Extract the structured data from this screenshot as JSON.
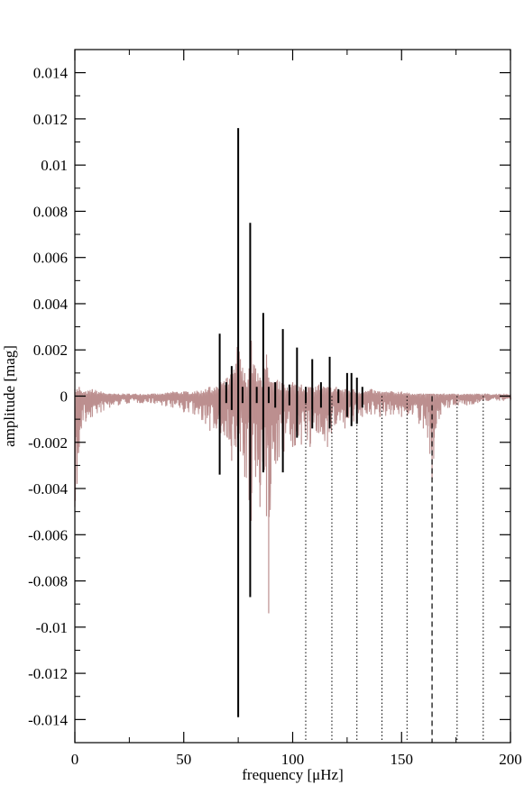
{
  "chart_data": {
    "type": "line",
    "xlabel": "frequency [μHz]",
    "ylabel": "amplitude [mag]",
    "xlim": [
      0,
      200
    ],
    "ylim": [
      -0.015,
      0.015
    ],
    "x_ticks": [
      0,
      50,
      100,
      150,
      200
    ],
    "y_ticks": [
      -0.014,
      -0.012,
      -0.01,
      -0.008,
      -0.006,
      -0.004,
      -0.002,
      0,
      0.002,
      0.004,
      0.006,
      0.008,
      0.01,
      0.012,
      0.014
    ],
    "x_tick_labels": [
      "0",
      "50",
      "100",
      "150",
      "200"
    ],
    "y_tick_labels": [
      "-0.014",
      "-0.012",
      "-0.01",
      "-0.008",
      "-0.006",
      "-0.004",
      "-0.002",
      "0",
      "0.002",
      "0.004",
      "0.006",
      "0.008",
      "0.01",
      "0.012",
      "0.014"
    ],
    "grid": false,
    "colors": {
      "spectrum": "#bc8f8f",
      "stick": "#000000",
      "frame": "#000000"
    },
    "series": [
      {
        "kind": "noisy-spectrum",
        "color": "#bc8f8f",
        "x": [
          0,
          1,
          2,
          3,
          5,
          8,
          12,
          16,
          20,
          25,
          30,
          35,
          40,
          45,
          50,
          55,
          60,
          62,
          65,
          67,
          70,
          72,
          74,
          75,
          76,
          78,
          80,
          81,
          83,
          85,
          87,
          88,
          89,
          90,
          93,
          96,
          100,
          104,
          108,
          112,
          116,
          120,
          124,
          128,
          132,
          136,
          140,
          145,
          150,
          155,
          158,
          160,
          162,
          163,
          164,
          165,
          166,
          168,
          172,
          176,
          180,
          185,
          190,
          195,
          200
        ],
        "upper": [
          0.0003,
          0.0003,
          0.0004,
          0.0002,
          0.0002,
          0.0003,
          0.0002,
          0.0001,
          0.0001,
          0.0001,
          0.0001,
          0.0001,
          0.0001,
          0.0002,
          0.0002,
          0.0002,
          0.0003,
          0.0004,
          0.0004,
          0.0006,
          0.0008,
          0.001,
          0.0014,
          0.0032,
          0.0016,
          0.001,
          0.0012,
          0.0024,
          0.0012,
          0.0008,
          0.0012,
          0.0018,
          0.0008,
          0.0006,
          0.0007,
          0.0005,
          0.0006,
          0.0005,
          0.0004,
          0.0005,
          0.0004,
          0.0004,
          0.0003,
          0.0003,
          0.0002,
          0.0003,
          0.0002,
          0.0002,
          0.0002,
          0.0001,
          0.0001,
          0.0001,
          0.0001,
          0.0001,
          0.0001,
          0.0001,
          0.0001,
          0.0001,
          0.0001,
          0.0001,
          0.0001,
          0.0001,
          0.0001,
          0.0001,
          0.0001
        ],
        "lower": [
          -0.0048,
          -0.0038,
          -0.0022,
          -0.0014,
          -0.0011,
          -0.0009,
          -0.0007,
          -0.0005,
          -0.0004,
          -0.0003,
          -0.0003,
          -0.0003,
          -0.0004,
          -0.0005,
          -0.0007,
          -0.0008,
          -0.0012,
          -0.0015,
          -0.0014,
          -0.0016,
          -0.0018,
          -0.0028,
          -0.0022,
          -0.0032,
          -0.0024,
          -0.0035,
          -0.0045,
          -0.0054,
          -0.0035,
          -0.0048,
          -0.0032,
          -0.0052,
          -0.0094,
          -0.0038,
          -0.0028,
          -0.0024,
          -0.0022,
          -0.0021,
          -0.0022,
          -0.0016,
          -0.0022,
          -0.0012,
          -0.0014,
          -0.0011,
          -0.0009,
          -0.0008,
          -0.0009,
          -0.0008,
          -0.0009,
          -0.0008,
          -0.0012,
          -0.0014,
          -0.0018,
          -0.0025,
          -0.0036,
          -0.0018,
          -0.0012,
          -0.0008,
          -0.0005,
          -0.0004,
          -0.0004,
          -0.0003,
          -0.0002,
          -0.0002,
          -0.0002
        ]
      },
      {
        "kind": "sticks",
        "color": "#000000",
        "x": [
          66.5,
          69.5,
          72,
          75,
          77,
          80.5,
          83.5,
          86.5,
          89,
          92,
          95.5,
          98.5,
          102,
          106,
          109,
          113,
          117,
          121,
          125,
          127,
          129.5,
          132
        ],
        "top": [
          0.0027,
          0.0006,
          0.0013,
          0.0116,
          0.0004,
          0.0075,
          0.0004,
          0.0036,
          0.0004,
          0.0006,
          0.0029,
          0.0005,
          0.0021,
          0.0004,
          0.0016,
          0.0006,
          0.0017,
          0.0003,
          0.001,
          0.001,
          0.0008,
          0.0004
        ],
        "bottom": [
          -0.0034,
          -0.0003,
          -0.0006,
          -0.0139,
          -0.0003,
          -0.0087,
          -0.0003,
          -0.0033,
          -0.0003,
          -0.0005,
          -0.0033,
          -0.0004,
          -0.0018,
          -0.0003,
          -0.0014,
          -0.0005,
          -0.0014,
          -0.0003,
          -0.0009,
          -0.0013,
          -0.0012,
          -0.0005
        ]
      },
      {
        "kind": "reference-lines",
        "color": "#000000",
        "dotted_x": [
          106,
          118,
          129.5,
          141,
          152.5,
          175.5,
          187.5
        ],
        "dashed_x": [
          164
        ],
        "from_y": 0,
        "to_y": -0.015
      }
    ]
  }
}
